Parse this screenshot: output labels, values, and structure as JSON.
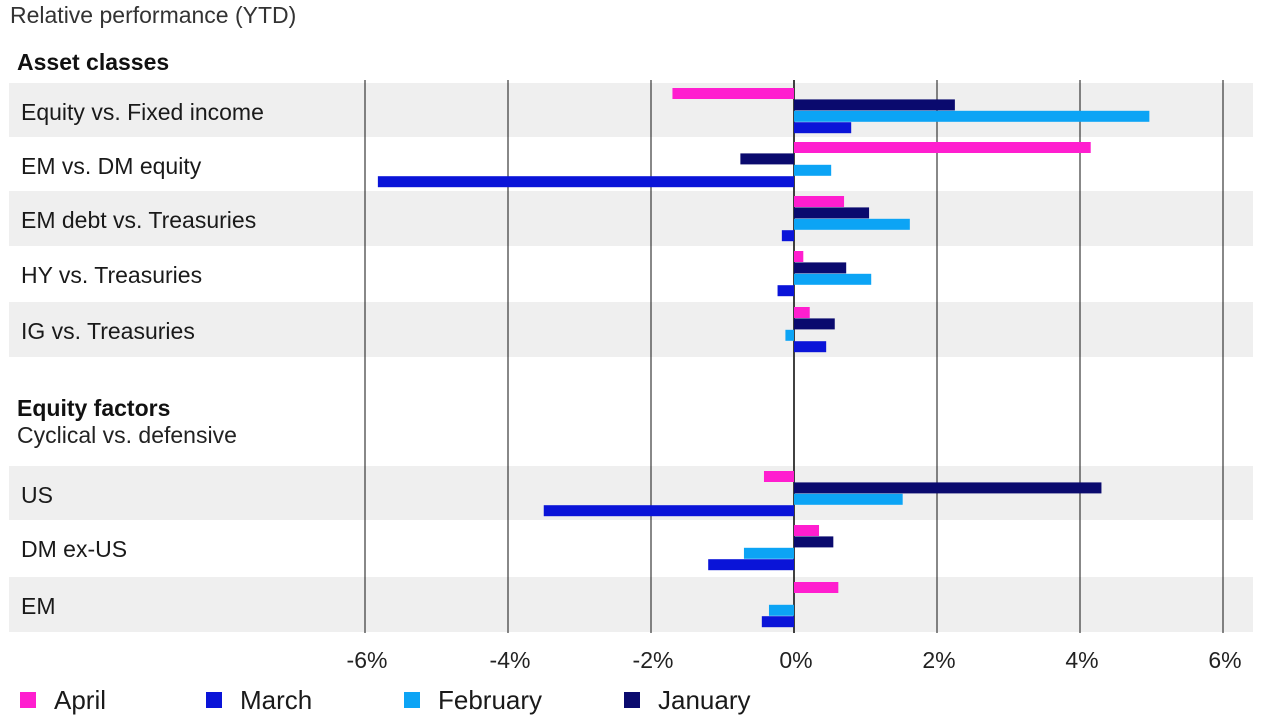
{
  "chart_data": {
    "type": "bar",
    "orientation": "horizontal",
    "title": "Relative performance (YTD)",
    "groups": [
      {
        "heading": "Asset classes",
        "subheading": "",
        "categories": [
          "Equity vs. Fixed income",
          "EM vs. DM equity",
          "EM debt vs. Treasuries",
          "HY vs. Treasuries",
          "IG vs. Treasuries"
        ]
      },
      {
        "heading": "Equity factors",
        "subheading": "Cyclical vs. defensive",
        "categories": [
          "US",
          "DM ex-US",
          "EM"
        ]
      }
    ],
    "series": [
      {
        "name": "April",
        "color": "#FF1ECF",
        "values": [
          -1.7,
          4.15,
          0.7,
          0.13,
          0.22,
          -0.42,
          0.35,
          0.62
        ]
      },
      {
        "name": "January",
        "color": "#0A0A6E",
        "values": [
          2.25,
          -0.75,
          1.05,
          0.73,
          0.57,
          4.3,
          0.55,
          null
        ]
      },
      {
        "name": "February",
        "color": "#0CA4F5",
        "values": [
          4.97,
          0.52,
          1.62,
          1.08,
          -0.12,
          1.52,
          -0.7,
          -0.35
        ]
      },
      {
        "name": "March",
        "color": "#0A14D8",
        "values": [
          0.8,
          -5.82,
          -0.17,
          -0.23,
          0.45,
          -3.5,
          -1.2,
          -0.45
        ]
      }
    ],
    "xlim": [
      -6,
      6
    ],
    "xticks": [
      "-6%",
      "-4%",
      "-2%",
      "0%",
      "2%",
      "4%",
      "6%"
    ],
    "legend": {
      "placement": "bottom-left",
      "items": [
        {
          "name": "April",
          "color": "#FF1ECF"
        },
        {
          "name": "March",
          "color": "#0A14D8"
        },
        {
          "name": "February",
          "color": "#0CA4F5"
        },
        {
          "name": "January",
          "color": "#0A0A6E"
        }
      ]
    },
    "grid": true,
    "row_band_color": "#EFEFEF"
  }
}
